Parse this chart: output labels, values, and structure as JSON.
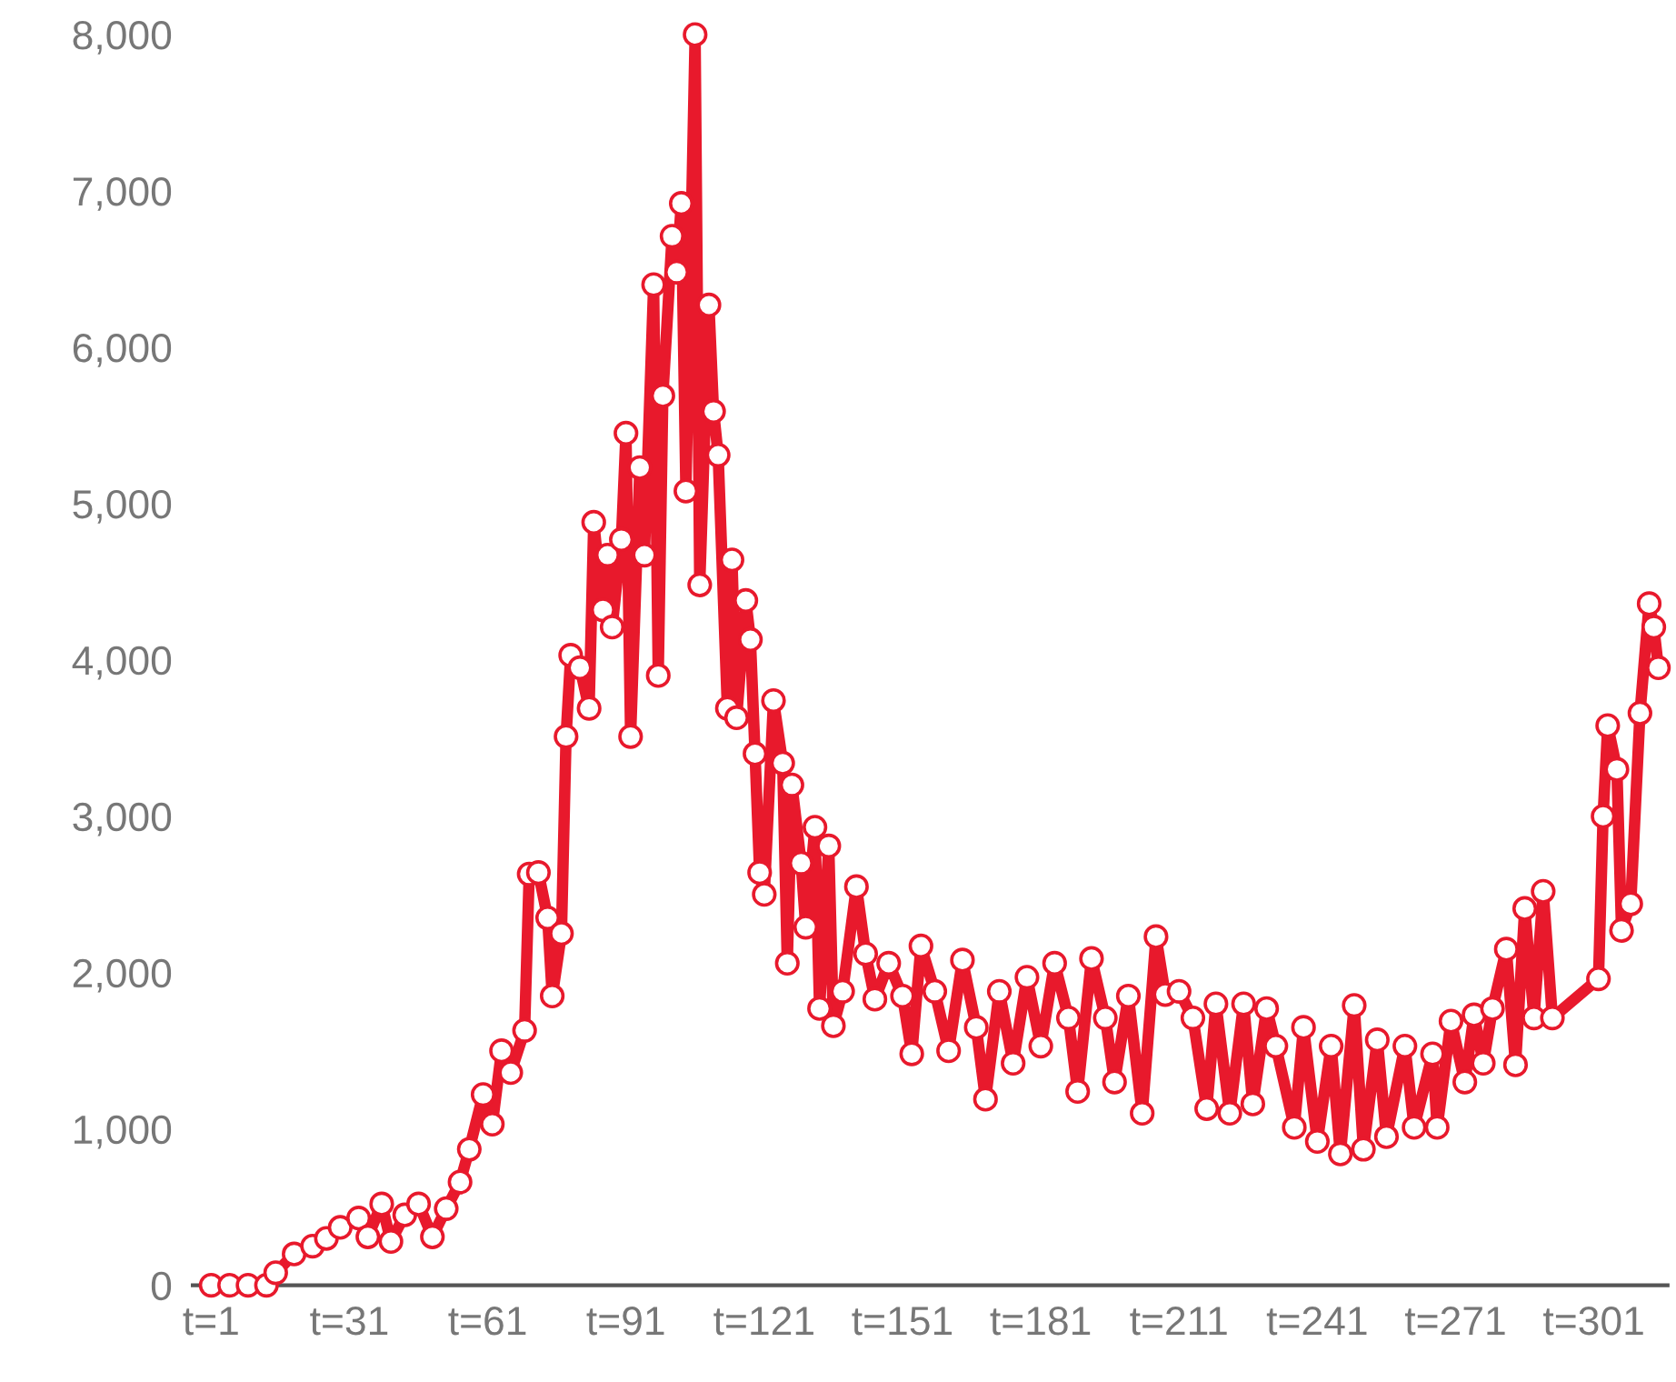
{
  "chart_data": {
    "type": "line",
    "marker": "circle",
    "line_style": "solid",
    "grid": false,
    "legend": false,
    "xlim": [
      -3,
      317
    ],
    "ylim": [
      0,
      8000
    ],
    "xticks": [
      {
        "value": 1,
        "label": "t=1"
      },
      {
        "value": 31,
        "label": "t=31"
      },
      {
        "value": 61,
        "label": "t=61"
      },
      {
        "value": 91,
        "label": "t=91"
      },
      {
        "value": 121,
        "label": "t=121"
      },
      {
        "value": 151,
        "label": "t=151"
      },
      {
        "value": 181,
        "label": "t=181"
      },
      {
        "value": 211,
        "label": "t=211"
      },
      {
        "value": 241,
        "label": "t=241"
      },
      {
        "value": 271,
        "label": "t=271"
      },
      {
        "value": 301,
        "label": "t=301"
      }
    ],
    "yticks": [
      {
        "value": 0,
        "label": "0"
      },
      {
        "value": 1000,
        "label": "1,000"
      },
      {
        "value": 2000,
        "label": "2,000"
      },
      {
        "value": 3000,
        "label": "3,000"
      },
      {
        "value": 4000,
        "label": "4,000"
      },
      {
        "value": 5000,
        "label": "5,000"
      },
      {
        "value": 6000,
        "label": "6,000"
      },
      {
        "value": 7000,
        "label": "7,000"
      },
      {
        "value": 8000,
        "label": "8,000"
      }
    ],
    "series": [
      {
        "color": "#e8192c",
        "x": [
          1,
          5,
          9,
          13,
          15,
          19,
          23,
          26,
          29,
          33,
          35,
          38,
          40,
          43,
          46,
          49,
          52,
          55,
          57,
          60,
          62,
          64,
          66,
          69,
          70,
          72,
          74,
          75,
          77,
          78,
          79,
          81,
          83,
          84,
          86,
          87,
          88,
          90,
          91,
          92,
          94,
          95,
          97,
          98,
          99,
          101,
          102,
          103,
          104,
          106,
          107,
          109,
          110,
          111,
          113,
          114,
          115,
          117,
          118,
          119,
          120,
          121,
          123,
          125,
          126,
          127,
          129,
          130,
          132,
          133,
          135,
          136,
          138,
          141,
          143,
          145,
          148,
          151,
          153,
          155,
          158,
          161,
          164,
          167,
          169,
          172,
          175,
          178,
          181,
          184,
          187,
          189,
          192,
          195,
          197,
          200,
          203,
          206,
          208,
          211,
          214,
          217,
          219,
          222,
          225,
          227,
          230,
          232,
          236,
          238,
          241,
          244,
          246,
          249,
          251,
          254,
          256,
          260,
          262,
          266,
          267,
          270,
          273,
          275,
          277,
          279,
          282,
          284,
          286,
          288,
          290,
          292,
          302,
          303,
          304,
          306,
          307,
          309,
          311,
          313,
          314,
          315
        ],
        "values": [
          0,
          0,
          0,
          0,
          80,
          200,
          250,
          300,
          370,
          430,
          310,
          520,
          280,
          450,
          520,
          310,
          490,
          660,
          870,
          1220,
          1030,
          1500,
          1360,
          1630,
          2630,
          2640,
          2350,
          1850,
          2250,
          3510,
          4030,
          3950,
          3690,
          4880,
          4320,
          4670,
          4210,
          4770,
          5450,
          3510,
          5230,
          4670,
          6400,
          3900,
          5690,
          6710,
          6480,
          6920,
          5080,
          8000,
          4480,
          6270,
          5590,
          5310,
          3690,
          4640,
          3630,
          4380,
          4130,
          3400,
          2640,
          2500,
          3740,
          3340,
          2060,
          3200,
          2700,
          2290,
          2930,
          1770,
          2810,
          1660,
          1880,
          2550,
          2120,
          1830,
          2060,
          1850,
          1480,
          2170,
          1880,
          1500,
          2080,
          1650,
          1190,
          1880,
          1420,
          1970,
          1530,
          2060,
          1710,
          1240,
          2090,
          1710,
          1300,
          1850,
          1100,
          2230,
          1860,
          1880,
          1710,
          1130,
          1800,
          1100,
          1800,
          1160,
          1770,
          1530,
          1010,
          1650,
          920,
          1530,
          840,
          1790,
          870,
          1570,
          950,
          1530,
          1010,
          1480,
          1010,
          1690,
          1300,
          1730,
          1420,
          1770,
          2150,
          1410,
          2410,
          1710,
          2520,
          1710,
          1960,
          3000,
          3580,
          3300,
          2270,
          2440,
          3660,
          4360,
          4210,
          3950
        ]
      }
    ]
  }
}
